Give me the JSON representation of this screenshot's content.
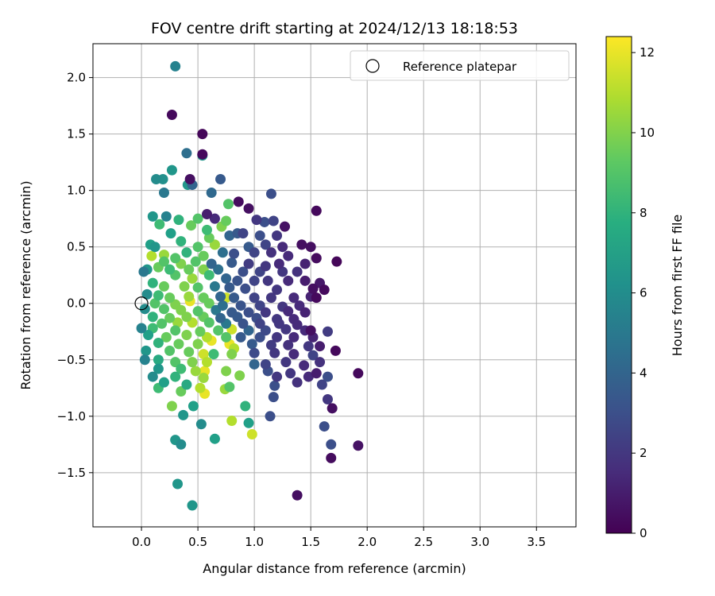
{
  "chart_data": {
    "type": "scatter",
    "title": "FOV centre drift starting at 2024/12/13 18:18:53",
    "xlabel": "Angular distance from reference (arcmin)",
    "ylabel": "Rotation from reference (arcmin)",
    "xlim": [
      -0.43,
      3.85
    ],
    "ylim": [
      -1.98,
      2.3
    ],
    "xticks": [
      0.0,
      0.5,
      1.0,
      1.5,
      2.0,
      2.5,
      3.0,
      3.5
    ],
    "xtick_labels": [
      "0.0",
      "0.5",
      "1.0",
      "1.5",
      "2.0",
      "2.5",
      "3.0",
      "3.5"
    ],
    "yticks": [
      -1.5,
      -1.0,
      -0.5,
      0.0,
      0.5,
      1.0,
      1.5,
      2.0
    ],
    "ytick_labels": [
      "−1.5",
      "−1.0",
      "−0.5",
      "0.0",
      "0.5",
      "1.0",
      "1.5",
      "2.0"
    ],
    "grid": true,
    "legend": {
      "position": "top-right",
      "entries": [
        "Reference platepar"
      ]
    },
    "reference_point": {
      "x": 0.0,
      "y": 0.0,
      "label": "Reference platepar"
    },
    "colorbar": {
      "label": "Hours from first FF file",
      "colormap": "viridis",
      "range": [
        0,
        12.4
      ],
      "ticks": [
        0,
        2,
        4,
        6,
        8,
        10,
        12
      ],
      "tick_labels": [
        "0",
        "2",
        "4",
        "6",
        "8",
        "10",
        "12"
      ]
    },
    "points": [
      [
        0.3,
        2.1,
        5.5
      ],
      [
        0.27,
        1.67,
        0.3
      ],
      [
        0.54,
        1.5,
        0.2
      ],
      [
        0.54,
        1.32,
        0.3
      ],
      [
        0.54,
        1.31,
        6.5
      ],
      [
        0.4,
        1.33,
        4.5
      ],
      [
        0.27,
        1.18,
        6.5
      ],
      [
        0.13,
        1.1,
        6.0
      ],
      [
        0.19,
        1.1,
        6.2
      ],
      [
        0.43,
        1.1,
        0.5
      ],
      [
        0.7,
        1.1,
        3.5
      ],
      [
        0.45,
        1.05,
        4.0
      ],
      [
        0.41,
        1.05,
        6.5
      ],
      [
        0.2,
        0.98,
        5.0
      ],
      [
        0.62,
        0.98,
        4.2
      ],
      [
        1.15,
        0.97,
        3.0
      ],
      [
        0.86,
        0.9,
        0.4
      ],
      [
        0.77,
        0.88,
        9.0
      ],
      [
        0.95,
        0.84,
        0.5
      ],
      [
        1.55,
        0.82,
        0.3
      ],
      [
        0.58,
        0.79,
        1.0
      ],
      [
        0.1,
        0.77,
        6.5
      ],
      [
        0.22,
        0.77,
        5.5
      ],
      [
        0.33,
        0.74,
        8.0
      ],
      [
        0.5,
        0.75,
        9.0
      ],
      [
        0.65,
        0.75,
        1.5
      ],
      [
        0.75,
        0.73,
        9.5
      ],
      [
        1.02,
        0.74,
        2.0
      ],
      [
        1.09,
        0.72,
        3.0
      ],
      [
        1.17,
        0.73,
        2.5
      ],
      [
        1.27,
        0.68,
        0.6
      ],
      [
        0.16,
        0.7,
        8.5
      ],
      [
        0.44,
        0.69,
        9.5
      ],
      [
        0.71,
        0.68,
        10.0
      ],
      [
        0.58,
        0.65,
        8.5
      ],
      [
        0.26,
        0.62,
        7.0
      ],
      [
        0.85,
        0.62,
        3.5
      ],
      [
        0.9,
        0.62,
        2.5
      ],
      [
        0.78,
        0.6,
        4.0
      ],
      [
        1.05,
        0.6,
        3.0
      ],
      [
        1.2,
        0.6,
        2.0
      ],
      [
        0.6,
        0.58,
        9.5
      ],
      [
        0.35,
        0.55,
        8.0
      ],
      [
        0.08,
        0.52,
        7.0
      ],
      [
        0.12,
        0.5,
        6.5
      ],
      [
        0.5,
        0.5,
        9.0
      ],
      [
        0.65,
        0.52,
        10.5
      ],
      [
        0.95,
        0.5,
        3.5
      ],
      [
        1.1,
        0.52,
        2.5
      ],
      [
        1.25,
        0.5,
        1.5
      ],
      [
        1.42,
        0.52,
        0.5
      ],
      [
        1.5,
        0.5,
        0.5
      ],
      [
        0.4,
        0.45,
        8.0
      ],
      [
        0.2,
        0.43,
        10.5
      ],
      [
        0.09,
        0.42,
        11.0
      ],
      [
        0.3,
        0.4,
        9.0
      ],
      [
        0.55,
        0.42,
        9.5
      ],
      [
        0.72,
        0.45,
        4.5
      ],
      [
        0.82,
        0.44,
        3.0
      ],
      [
        1.0,
        0.45,
        2.5
      ],
      [
        1.15,
        0.45,
        1.8
      ],
      [
        1.3,
        0.42,
        1.5
      ],
      [
        1.55,
        0.4,
        0.4
      ],
      [
        1.73,
        0.37,
        0.2
      ],
      [
        0.2,
        0.37,
        9.0
      ],
      [
        0.35,
        0.35,
        10.0
      ],
      [
        0.48,
        0.37,
        9.0
      ],
      [
        0.62,
        0.35,
        4.0
      ],
      [
        0.8,
        0.36,
        3.5
      ],
      [
        0.95,
        0.35,
        2.2
      ],
      [
        1.1,
        0.33,
        2.0
      ],
      [
        1.22,
        0.35,
        1.5
      ],
      [
        1.45,
        0.35,
        1.2
      ],
      [
        0.05,
        0.3,
        6.5
      ],
      [
        0.15,
        0.32,
        9.5
      ],
      [
        0.25,
        0.3,
        8.5
      ],
      [
        0.42,
        0.3,
        9.5
      ],
      [
        0.55,
        0.3,
        10.0
      ],
      [
        0.68,
        0.3,
        4.5
      ],
      [
        0.9,
        0.28,
        3.0
      ],
      [
        1.05,
        0.28,
        2.5
      ],
      [
        1.25,
        0.28,
        2.0
      ],
      [
        1.38,
        0.28,
        1.8
      ],
      [
        0.02,
        0.28,
        5.0
      ],
      [
        0.3,
        0.25,
        9.0
      ],
      [
        0.45,
        0.22,
        10.5
      ],
      [
        0.6,
        0.25,
        8.5
      ],
      [
        0.75,
        0.22,
        4.0
      ],
      [
        0.85,
        0.2,
        3.2
      ],
      [
        1.0,
        0.2,
        2.5
      ],
      [
        1.12,
        0.2,
        2.0
      ],
      [
        1.3,
        0.2,
        1.5
      ],
      [
        1.45,
        0.2,
        1.0
      ],
      [
        1.58,
        0.18,
        0.8
      ],
      [
        0.1,
        0.18,
        8.0
      ],
      [
        0.2,
        0.15,
        9.5
      ],
      [
        0.38,
        0.15,
        10.0
      ],
      [
        0.5,
        0.14,
        9.0
      ],
      [
        0.65,
        0.15,
        5.0
      ],
      [
        0.78,
        0.14,
        3.5
      ],
      [
        0.92,
        0.13,
        3.0
      ],
      [
        1.2,
        0.12,
        2.0
      ],
      [
        1.52,
        0.13,
        0.5
      ],
      [
        1.62,
        0.12,
        0.3
      ],
      [
        0.05,
        0.08,
        6.0
      ],
      [
        0.15,
        0.07,
        8.5
      ],
      [
        0.25,
        0.05,
        9.5
      ],
      [
        0.42,
        0.06,
        10.5
      ],
      [
        0.55,
        0.05,
        9.5
      ],
      [
        0.7,
        0.06,
        4.0
      ],
      [
        0.82,
        0.05,
        3.5
      ],
      [
        1.0,
        0.05,
        2.5
      ],
      [
        1.15,
        0.05,
        2.0
      ],
      [
        1.35,
        0.05,
        1.5
      ],
      [
        1.5,
        0.06,
        1.2
      ],
      [
        1.55,
        0.05,
        0.3
      ],
      [
        0.75,
        0.05,
        11.5
      ],
      [
        0.43,
        0.02,
        12.0
      ],
      [
        0.12,
        0.0,
        9.0
      ],
      [
        0.3,
        -0.01,
        10.0
      ],
      [
        0.6,
        0.0,
        9.5
      ],
      [
        0.72,
        -0.02,
        4.5
      ],
      [
        0.88,
        -0.02,
        3.2
      ],
      [
        1.05,
        -0.02,
        2.5
      ],
      [
        1.25,
        -0.03,
        2.0
      ],
      [
        1.4,
        -0.02,
        1.5
      ],
      [
        0.03,
        -0.05,
        6.0
      ],
      [
        0.2,
        -0.05,
        9.0
      ],
      [
        0.35,
        -0.06,
        10.0
      ],
      [
        0.5,
        -0.07,
        9.0
      ],
      [
        0.66,
        -0.06,
        5.0
      ],
      [
        0.8,
        -0.08,
        3.5
      ],
      [
        0.95,
        -0.08,
        3.0
      ],
      [
        1.1,
        -0.08,
        2.0
      ],
      [
        1.3,
        -0.07,
        1.5
      ],
      [
        1.45,
        -0.08,
        1.2
      ],
      [
        0.1,
        -0.12,
        8.0
      ],
      [
        0.25,
        -0.13,
        9.5
      ],
      [
        0.4,
        -0.12,
        10.0
      ],
      [
        0.55,
        -0.12,
        9.5
      ],
      [
        0.7,
        -0.13,
        4.0
      ],
      [
        0.85,
        -0.12,
        3.5
      ],
      [
        1.02,
        -0.13,
        3.0
      ],
      [
        1.2,
        -0.14,
        2.0
      ],
      [
        1.35,
        -0.14,
        1.5
      ],
      [
        0.18,
        -0.18,
        9.0
      ],
      [
        0.32,
        -0.17,
        10.5
      ],
      [
        0.45,
        -0.17,
        11.0
      ],
      [
        0.6,
        -0.17,
        9.0
      ],
      [
        0.75,
        -0.18,
        5.0
      ],
      [
        0.9,
        -0.18,
        3.2
      ],
      [
        1.05,
        -0.18,
        2.5
      ],
      [
        1.22,
        -0.18,
        2.0
      ],
      [
        1.38,
        -0.19,
        1.5
      ],
      [
        0.0,
        -0.22,
        5.5
      ],
      [
        0.1,
        -0.22,
        8.5
      ],
      [
        0.3,
        -0.24,
        9.0
      ],
      [
        0.52,
        -0.25,
        9.5
      ],
      [
        0.68,
        -0.24,
        9.0
      ],
      [
        0.8,
        -0.23,
        11.5
      ],
      [
        0.95,
        -0.24,
        4.0
      ],
      [
        1.1,
        -0.24,
        2.8
      ],
      [
        1.28,
        -0.23,
        2.0
      ],
      [
        1.45,
        -0.24,
        1.5
      ],
      [
        1.5,
        -0.24,
        0.5
      ],
      [
        1.65,
        -0.25,
        2.2
      ],
      [
        0.06,
        -0.28,
        7.0
      ],
      [
        0.22,
        -0.3,
        9.5
      ],
      [
        0.4,
        -0.28,
        10.0
      ],
      [
        0.58,
        -0.3,
        11.0
      ],
      [
        0.62,
        -0.33,
        12.0
      ],
      [
        0.75,
        -0.3,
        9.0
      ],
      [
        0.88,
        -0.3,
        3.5
      ],
      [
        1.05,
        -0.3,
        3.0
      ],
      [
        1.2,
        -0.3,
        2.0
      ],
      [
        1.35,
        -0.3,
        1.5
      ],
      [
        1.52,
        -0.3,
        1.2
      ],
      [
        0.15,
        -0.35,
        8.0
      ],
      [
        0.33,
        -0.36,
        9.5
      ],
      [
        0.5,
        -0.36,
        10.0
      ],
      [
        0.78,
        -0.36,
        12.0
      ],
      [
        0.82,
        -0.4,
        11.0
      ],
      [
        0.98,
        -0.36,
        3.5
      ],
      [
        1.15,
        -0.37,
        2.2
      ],
      [
        1.3,
        -0.37,
        1.8
      ],
      [
        1.48,
        -0.38,
        2.0
      ],
      [
        1.58,
        -0.38,
        1.0
      ],
      [
        1.72,
        -0.42,
        0.3
      ],
      [
        0.04,
        -0.42,
        6.5
      ],
      [
        0.25,
        -0.42,
        9.0
      ],
      [
        0.42,
        -0.43,
        9.5
      ],
      [
        0.55,
        -0.45,
        11.5
      ],
      [
        0.64,
        -0.45,
        8.5
      ],
      [
        0.8,
        -0.45,
        10.0
      ],
      [
        1.0,
        -0.44,
        2.8
      ],
      [
        1.18,
        -0.44,
        2.0
      ],
      [
        1.35,
        -0.45,
        1.5
      ],
      [
        1.52,
        -0.46,
        2.5
      ],
      [
        0.03,
        -0.5,
        5.5
      ],
      [
        0.15,
        -0.5,
        7.5
      ],
      [
        0.3,
        -0.52,
        9.0
      ],
      [
        0.45,
        -0.52,
        10.0
      ],
      [
        0.58,
        -0.52,
        11.0
      ],
      [
        1.0,
        -0.54,
        4.0
      ],
      [
        1.1,
        -0.54,
        2.5
      ],
      [
        1.28,
        -0.52,
        2.0
      ],
      [
        1.44,
        -0.55,
        1.5
      ],
      [
        1.58,
        -0.52,
        1.8
      ],
      [
        0.15,
        -0.58,
        6.5
      ],
      [
        0.35,
        -0.58,
        8.5
      ],
      [
        0.48,
        -0.6,
        10.5
      ],
      [
        0.56,
        -0.6,
        12.0
      ],
      [
        0.75,
        -0.6,
        10.0
      ],
      [
        1.12,
        -0.6,
        3.0
      ],
      [
        1.32,
        -0.62,
        2.0
      ],
      [
        1.55,
        -0.62,
        1.0
      ],
      [
        1.92,
        -0.62,
        0.3
      ],
      [
        0.1,
        -0.65,
        6.0
      ],
      [
        0.3,
        -0.65,
        8.0
      ],
      [
        0.55,
        -0.66,
        10.5
      ],
      [
        0.87,
        -0.64,
        10.0
      ],
      [
        1.2,
        -0.65,
        2.0
      ],
      [
        1.48,
        -0.65,
        1.5
      ],
      [
        1.65,
        -0.65,
        3.0
      ],
      [
        0.2,
        -0.7,
        7.0
      ],
      [
        0.4,
        -0.72,
        7.5
      ],
      [
        0.52,
        -0.75,
        11.0
      ],
      [
        0.78,
        -0.74,
        9.0
      ],
      [
        1.18,
        -0.73,
        3.0
      ],
      [
        1.38,
        -0.7,
        1.8
      ],
      [
        1.6,
        -0.72,
        2.5
      ],
      [
        0.15,
        -0.75,
        8.5
      ],
      [
        0.35,
        -0.78,
        9.5
      ],
      [
        0.56,
        -0.8,
        12.0
      ],
      [
        0.74,
        -0.76,
        10.5
      ],
      [
        1.17,
        -0.83,
        3.0
      ],
      [
        1.65,
        -0.85,
        2.0
      ],
      [
        0.27,
        -0.91,
        10.0
      ],
      [
        0.46,
        -0.91,
        7.0
      ],
      [
        0.92,
        -0.91,
        8.0
      ],
      [
        1.69,
        -0.93,
        0.5
      ],
      [
        0.37,
        -0.99,
        6.5
      ],
      [
        0.53,
        -1.07,
        6.0
      ],
      [
        0.8,
        -1.04,
        11.0
      ],
      [
        0.95,
        -1.06,
        7.0
      ],
      [
        1.14,
        -1.0,
        3.0
      ],
      [
        1.62,
        -1.09,
        3.0
      ],
      [
        0.98,
        -1.16,
        11.5
      ],
      [
        0.3,
        -1.21,
        6.5
      ],
      [
        0.35,
        -1.25,
        6.0
      ],
      [
        0.65,
        -1.2,
        7.0
      ],
      [
        1.68,
        -1.25,
        3.0
      ],
      [
        1.92,
        -1.26,
        0.6
      ],
      [
        1.68,
        -1.37,
        0.4
      ],
      [
        0.32,
        -1.6,
        6.5
      ],
      [
        1.38,
        -1.7,
        0.5
      ],
      [
        0.45,
        -1.79,
        6.5
      ]
    ]
  }
}
